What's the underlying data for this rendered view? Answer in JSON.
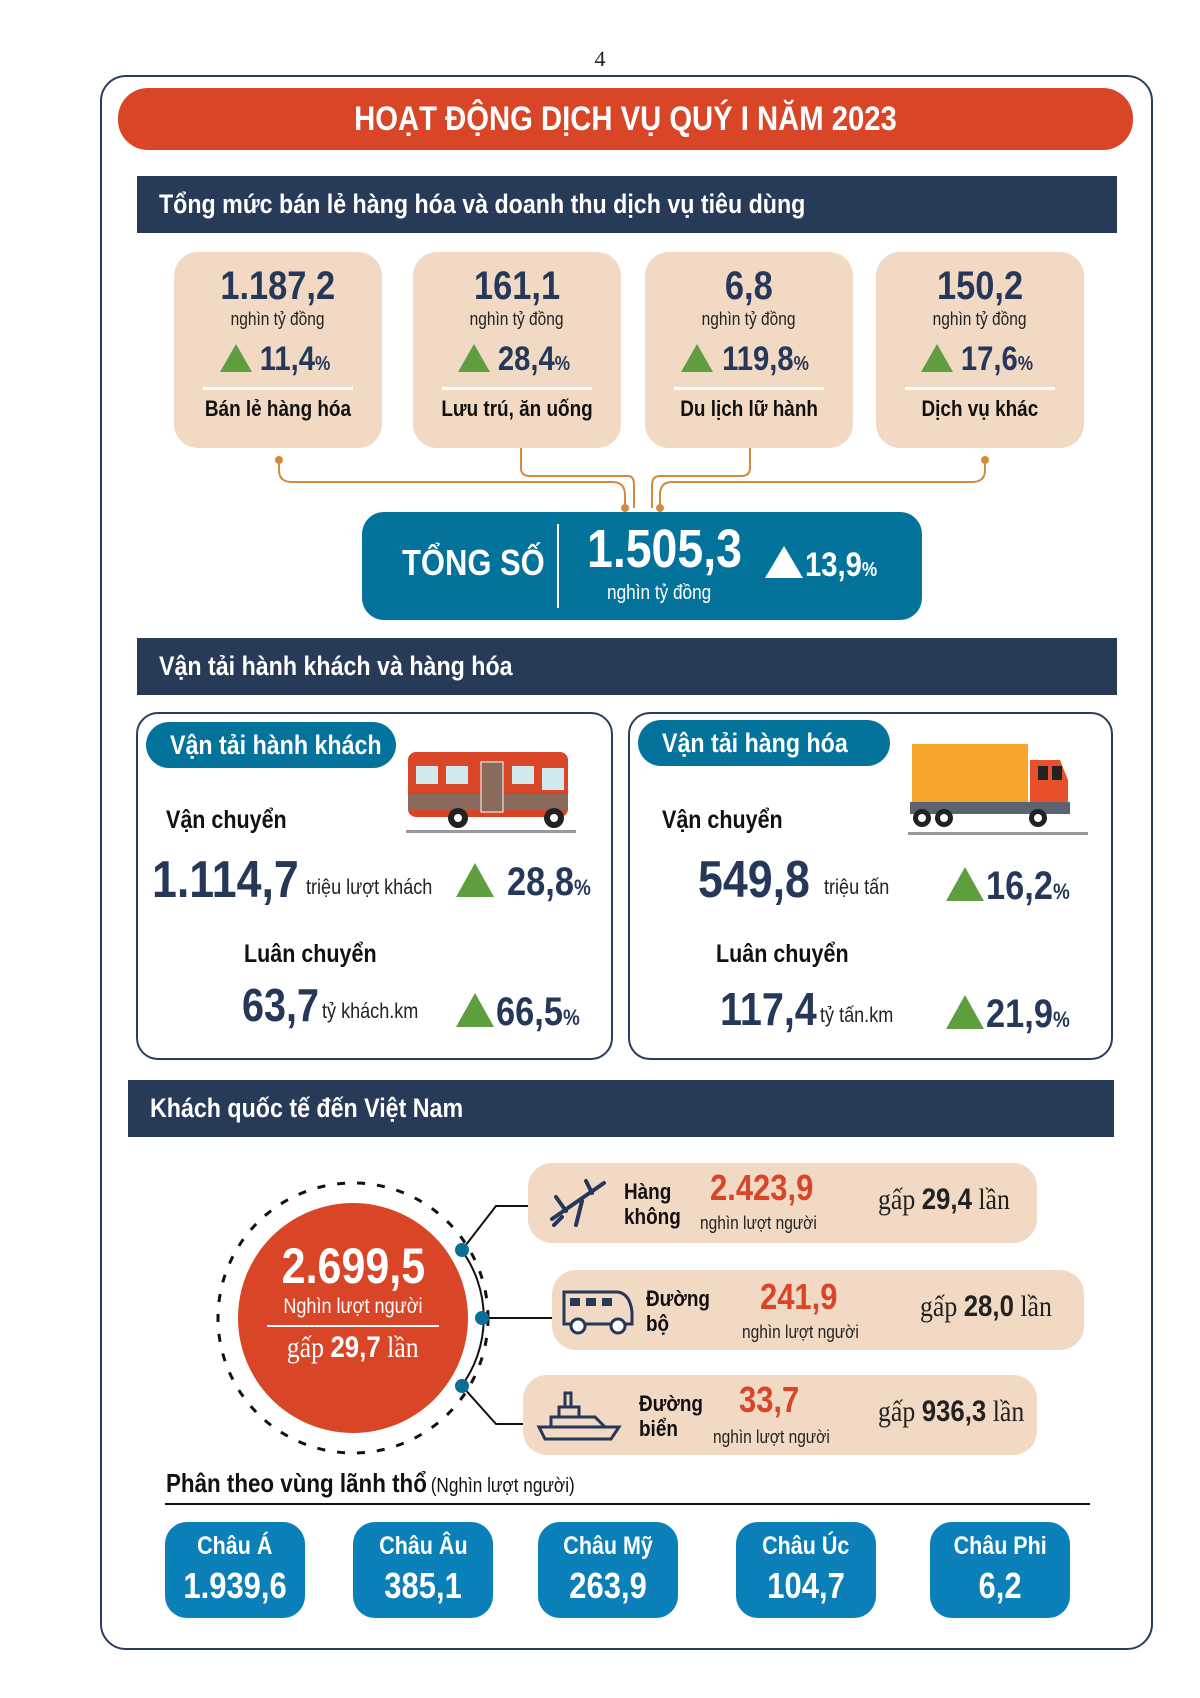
{
  "page_number": "4",
  "title": "HOẠT ĐỘNG DỊCH VỤ QUÝ I NĂM 2023",
  "retail": {
    "header": "Tổng mức bán lẻ hàng hóa và doanh thu dịch vụ tiêu dùng",
    "cards": [
      {
        "value": "1.187,2",
        "unit": "nghìn tỷ đồng",
        "growth": "11,4",
        "label": "Bán lẻ hàng hóa"
      },
      {
        "value": "161,1",
        "unit": "nghìn tỷ đồng",
        "growth": "28,4",
        "label": "Lưu trú, ăn uống"
      },
      {
        "value": "6,8",
        "unit": "nghìn tỷ đồng",
        "growth": "119,8",
        "label": "Du lịch lữ hành"
      },
      {
        "value": "150,2",
        "unit": "nghìn tỷ đồng",
        "growth": "17,6",
        "label": "Dịch vụ khác"
      }
    ],
    "percent_sign": "%",
    "total": {
      "label": "TỔNG SỐ",
      "value": "1.505,3",
      "unit": "nghìn tỷ đồng",
      "growth": "13,9"
    }
  },
  "transport": {
    "header": "Vận tải hành khách và hàng hóa",
    "passenger": {
      "title": "Vận tải hành khách",
      "carry_label": "Vận chuyển",
      "carry_value": "1.114,7",
      "carry_unit": "triệu lượt khách",
      "carry_growth": "28,8",
      "rotate_label": "Luân chuyển",
      "rotate_value": "63,7",
      "rotate_unit": "tỷ khách.km",
      "rotate_growth": "66,5"
    },
    "cargo": {
      "title": "Vận tải hàng hóa",
      "carry_label": "Vận chuyển",
      "carry_value": "549,8",
      "carry_unit": "triệu tấn",
      "carry_growth": "16,2",
      "rotate_label": "Luân chuyển",
      "rotate_value": "117,4",
      "rotate_unit": "tỷ tấn.km",
      "rotate_growth": "21,9"
    }
  },
  "visitors": {
    "header": "Khách quốc tế đến Việt Nam",
    "total": {
      "value": "2.699,5",
      "unit": "Nghìn lượt người",
      "times_prefix": "gấp",
      "times": "29,7",
      "times_suffix": "lần"
    },
    "modes": [
      {
        "line1": "Hàng",
        "line2": "không",
        "value": "2.423,9",
        "unit": "nghìn lượt người",
        "times_prefix": "gấp",
        "times": "29,4",
        "times_suffix": "lần"
      },
      {
        "line1": "Đường",
        "line2": "bộ",
        "value": "241,9",
        "unit": "nghìn lượt người",
        "times_prefix": "gấp",
        "times": "28,0",
        "times_suffix": "lần"
      },
      {
        "line1": "Đường",
        "line2": "biển",
        "value": "33,7",
        "unit": "nghìn lượt người",
        "times_prefix": "gấp",
        "times": "936,3",
        "times_suffix": "lần"
      }
    ],
    "regions_title": "Phân theo vùng lãnh thổ",
    "regions_unit": "(Nghìn lượt người)",
    "regions": [
      {
        "name": "Châu Á",
        "value": "1.939,6"
      },
      {
        "name": "Châu Âu",
        "value": "385,1"
      },
      {
        "name": "Châu Mỹ",
        "value": "263,9"
      },
      {
        "name": "Châu Úc",
        "value": "104,7"
      },
      {
        "name": "Châu Phi",
        "value": "6,2"
      }
    ]
  },
  "colors": {
    "accent_red": "#d84527",
    "navy": "#273a58",
    "teal": "#04739c",
    "beige": "#f1d9c4",
    "green": "#5f9e3f"
  }
}
